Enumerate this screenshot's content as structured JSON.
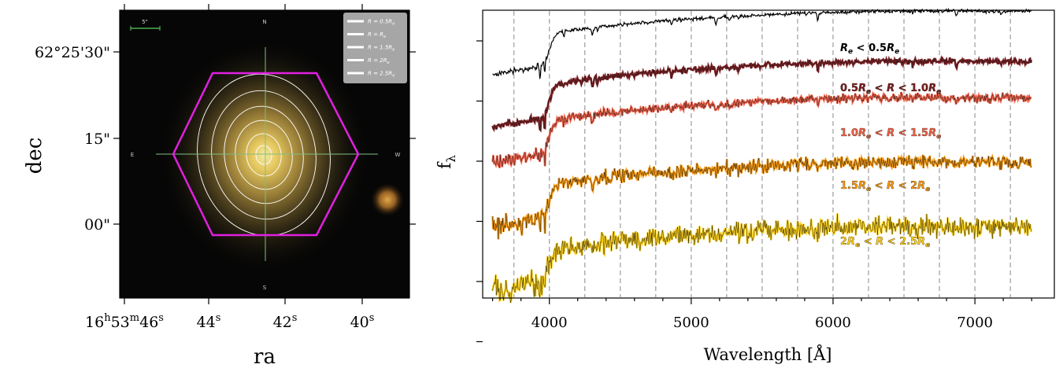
{
  "chart_data": [
    {
      "type": "image",
      "xlabel": "ra",
      "ylabel": "dec",
      "x_ticks": [
        {
          "base": "16",
          "h": "h",
          "mid1": "53",
          "m": "m",
          "mid2": "46",
          "s": "s"
        },
        {
          "base": "44",
          "s": "s"
        },
        {
          "base": "42",
          "s": "s"
        },
        {
          "base": "40",
          "s": "s"
        }
      ],
      "y_ticks": [
        "62°25'30\"",
        "15\"",
        "00\""
      ],
      "scale_bar": "5\"",
      "compass": {
        "n": "N",
        "s": "S",
        "e": "E",
        "w": "W"
      },
      "legend": {
        "placement": "top-right",
        "entries": [
          {
            "pre": "R = 0.5R",
            "sub": "e"
          },
          {
            "pre": "R = R",
            "sub": "e"
          },
          {
            "pre": "R = 1.5R",
            "sub": "e"
          },
          {
            "pre": "R = 2R",
            "sub": "e"
          },
          {
            "pre": "R = 2.5R",
            "sub": "e"
          }
        ]
      },
      "hexagon_color": "#e020e0",
      "contour_color": "#ffffff",
      "crosshair_color": "#7fbf7f"
    },
    {
      "type": "line",
      "xlabel": "Wavelength [Å]",
      "ylabel": "fλ",
      "xlim": [
        3530,
        7560
      ],
      "x_ticks": [
        4000,
        5000,
        6000,
        7000
      ],
      "vlines": [
        3750,
        4000,
        4250,
        4500,
        4750,
        5000,
        5250,
        5500,
        5750,
        6000,
        6250,
        6500,
        6750,
        7000,
        7250
      ],
      "y_tick_count": 6,
      "series": [
        {
          "color": "#000000",
          "label": [
            [
              "R",
              "i"
            ],
            [
              "e",
              "sub"
            ],
            [
              " < 0.5",
              "n"
            ],
            [
              "R",
              "i"
            ],
            [
              "e",
              "sub"
            ]
          ]
        },
        {
          "color": "#7a1e22",
          "label": [
            [
              "0.5",
              "n"
            ],
            [
              "R",
              "i"
            ],
            [
              "e",
              "sub"
            ],
            [
              " < ",
              "n"
            ],
            [
              "R",
              "i"
            ],
            [
              " < 1.0",
              "n"
            ],
            [
              "R",
              "i"
            ],
            [
              "e",
              "sub"
            ]
          ]
        },
        {
          "color": "#f06048",
          "label": [
            [
              "1.0",
              "n"
            ],
            [
              "R",
              "i"
            ],
            [
              "e",
              "sub"
            ],
            [
              " < ",
              "n"
            ],
            [
              "R",
              "i"
            ],
            [
              " < 1.5",
              "n"
            ],
            [
              "R",
              "i"
            ],
            [
              "e",
              "sub"
            ]
          ]
        },
        {
          "color": "#f99a10",
          "label": [
            [
              "1.5",
              "n"
            ],
            [
              "R",
              "i"
            ],
            [
              "e",
              "sub"
            ],
            [
              " < ",
              "n"
            ],
            [
              "R",
              "i"
            ],
            [
              " < 2",
              "n"
            ],
            [
              "R",
              "i"
            ],
            [
              "e",
              "sub"
            ]
          ]
        },
        {
          "color": "#ffd21a",
          "label": [
            [
              "2",
              "n"
            ],
            [
              "R",
              "i"
            ],
            [
              "e",
              "sub"
            ],
            [
              " < ",
              "n"
            ],
            [
              "R",
              "i"
            ],
            [
              " < 2.5",
              "n"
            ],
            [
              "R",
              "i"
            ],
            [
              "e",
              "sub"
            ]
          ]
        }
      ]
    }
  ]
}
